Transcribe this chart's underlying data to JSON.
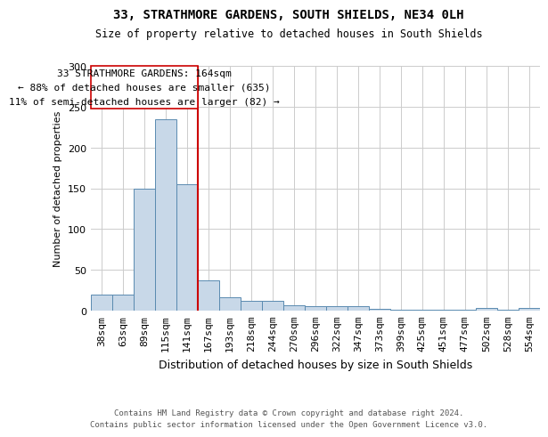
{
  "title": "33, STRATHMORE GARDENS, SOUTH SHIELDS, NE34 0LH",
  "subtitle": "Size of property relative to detached houses in South Shields",
  "xlabel": "Distribution of detached houses by size in South Shields",
  "ylabel": "Number of detached properties",
  "footer_line1": "Contains HM Land Registry data © Crown copyright and database right 2024.",
  "footer_line2": "Contains public sector information licensed under the Open Government Licence v3.0.",
  "annotation_line1": "33 STRATHMORE GARDENS: 164sqm",
  "annotation_line2": "← 88% of detached houses are smaller (635)",
  "annotation_line3": "11% of semi-detached houses are larger (82) →",
  "categories": [
    "38sqm",
    "63sqm",
    "89sqm",
    "115sqm",
    "141sqm",
    "167sqm",
    "193sqm",
    "218sqm",
    "244sqm",
    "270sqm",
    "296sqm",
    "322sqm",
    "347sqm",
    "373sqm",
    "399sqm",
    "425sqm",
    "451sqm",
    "477sqm",
    "502sqm",
    "528sqm",
    "554sqm"
  ],
  "values": [
    20,
    20,
    150,
    235,
    155,
    37,
    16,
    12,
    12,
    7,
    5,
    5,
    5,
    2,
    1,
    1,
    1,
    1,
    3,
    1,
    3
  ],
  "bar_color": "#c8d8e8",
  "bar_edge_color": "#5a8ab0",
  "vline_color": "#cc0000",
  "vline_index": 5,
  "annotation_box_color": "#cc0000",
  "annotation_text_color": "#000000",
  "annotation_bg_color": "#ffffff",
  "ylim": [
    0,
    300
  ],
  "yticks": [
    0,
    50,
    100,
    150,
    200,
    250,
    300
  ],
  "background_color": "#ffffff",
  "grid_color": "#cccccc",
  "title_fontsize": 10,
  "subtitle_fontsize": 8.5,
  "ylabel_fontsize": 8,
  "xlabel_fontsize": 9,
  "tick_fontsize": 8,
  "annotation_fontsize": 8,
  "footer_fontsize": 6.5,
  "footer_color": "#555555"
}
